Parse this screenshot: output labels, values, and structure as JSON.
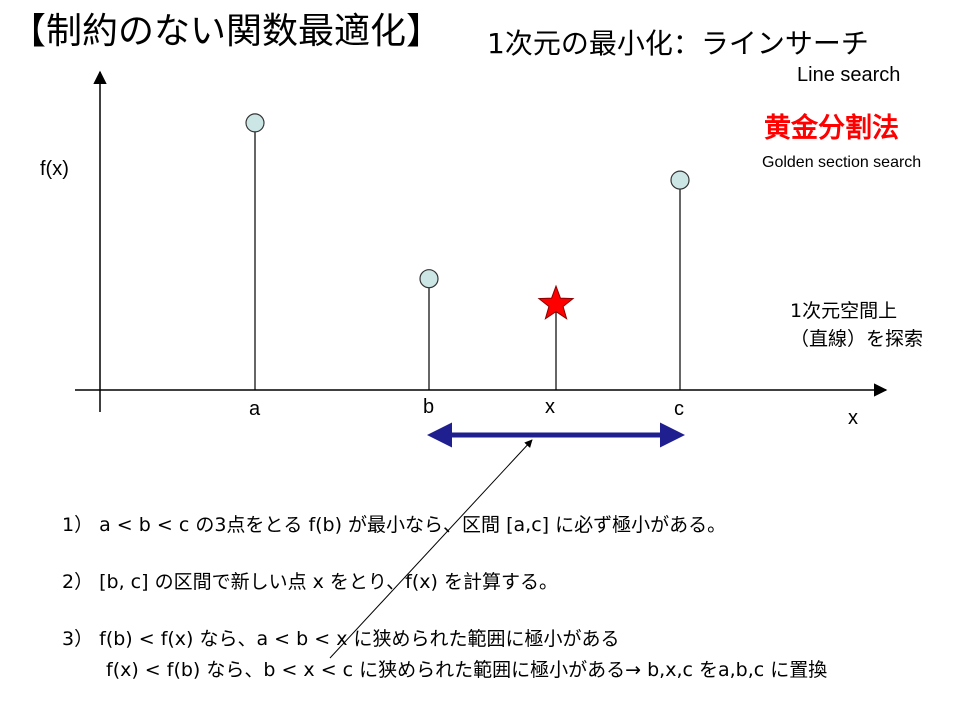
{
  "title": {
    "main": "【制約のない関数最適化】",
    "sub": "1次元の最小化：ラインサーチ",
    "line_search": "Line search",
    "golden_jp": "黄金分割法",
    "golden_en": "Golden section search"
  },
  "axes": {
    "y_label": "f(x)",
    "x_label": "x"
  },
  "points": [
    {
      "label": "a",
      "value": 0.84
    },
    {
      "label": "b",
      "value": 0.35
    },
    {
      "label": "x",
      "value": 0.27,
      "marker": "star"
    },
    {
      "label": "c",
      "value": 0.66
    }
  ],
  "annotation": {
    "line1": "1次元空間上",
    "line2": "（直線）を探索"
  },
  "steps": {
    "s1": "1）  a < b < c の3点をとる     f(b) が最小なら、区間 [a,c] に必ず極小がある。",
    "s2": "2）  [b, c] の区間で新しい点 x をとり、f(x) を計算する。",
    "s3a": "3）  f(b) < f(x) なら、a < b < x に狭められた範囲に極小がある",
    "s3b": "f(x) < f(b) なら、b < x < c に狭められた範囲に極小がある→ b,x,c をa,b,c に置換"
  },
  "colors": {
    "circle_fill": "#cce6e6",
    "star": "#ff0000",
    "interval_arrow": "#1f1f8f",
    "golden_title": "#ff0000"
  }
}
